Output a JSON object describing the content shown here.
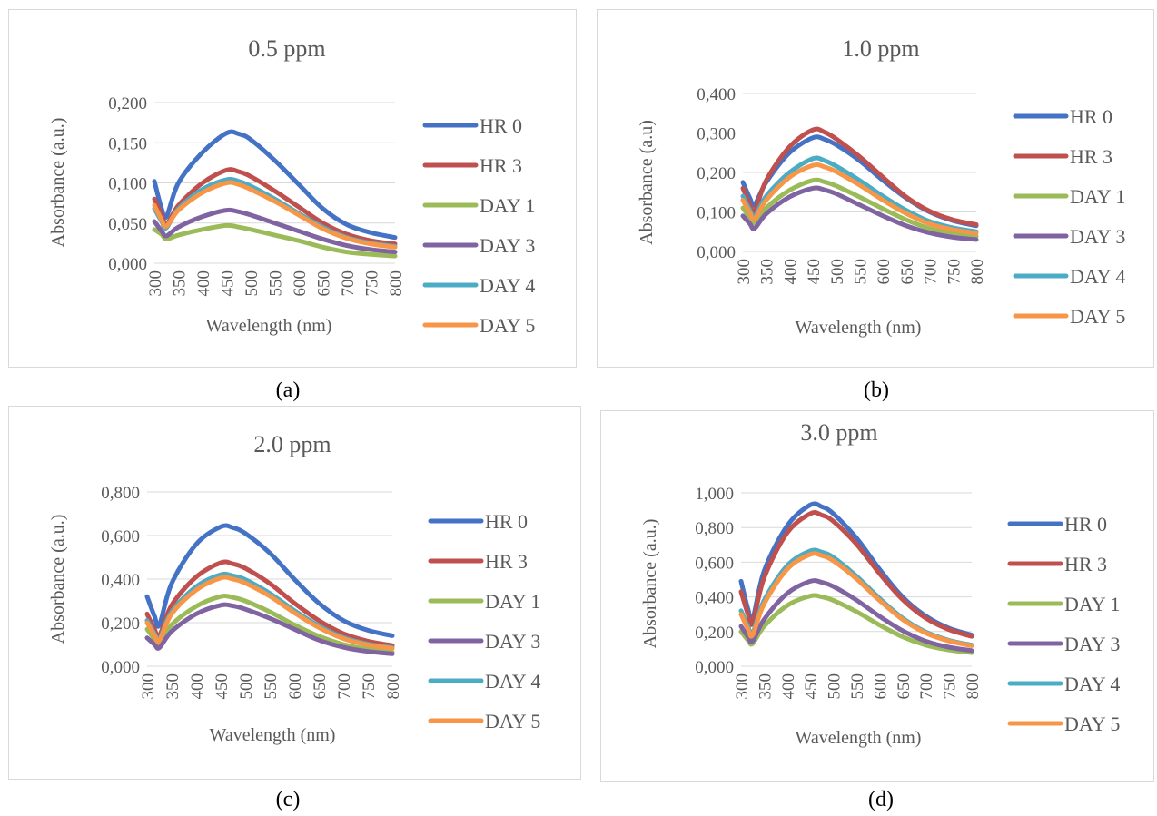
{
  "colors": {
    "HR 0": "#4472c4",
    "HR 3": "#c0504d",
    "DAY 1": "#9bbb59",
    "DAY 3": "#8064a2",
    "DAY 4": "#4bacc6",
    "DAY 5": "#f79646"
  },
  "chart_data": [
    {
      "type": "line",
      "caption": "(a)",
      "title": "0.5 ppm",
      "xlabel": "Wavelength (nm)",
      "ylabel": "Absorbance (a.u.)",
      "ylim": [
        0,
        0.2
      ],
      "yticks": [
        "0,000",
        "0,050",
        "0,100",
        "0,150",
        "0,200"
      ],
      "xticks": [
        "300",
        "350",
        "400",
        "450",
        "500",
        "550",
        "600",
        "650",
        "700",
        "750",
        "800"
      ],
      "grid": true,
      "legend": "right",
      "x": [
        300,
        315,
        325,
        350,
        400,
        450,
        475,
        500,
        550,
        600,
        650,
        700,
        750,
        800
      ],
      "series": [
        {
          "name": "HR 0",
          "values": [
            0.102,
            0.068,
            0.058,
            0.1,
            0.138,
            0.162,
            0.161,
            0.154,
            0.128,
            0.098,
            0.068,
            0.048,
            0.038,
            0.032
          ]
        },
        {
          "name": "HR 3",
          "values": [
            0.08,
            0.06,
            0.048,
            0.072,
            0.1,
            0.116,
            0.114,
            0.108,
            0.09,
            0.07,
            0.05,
            0.036,
            0.028,
            0.024
          ]
        },
        {
          "name": "DAY 1",
          "values": [
            0.042,
            0.036,
            0.03,
            0.035,
            0.042,
            0.047,
            0.045,
            0.042,
            0.035,
            0.028,
            0.02,
            0.014,
            0.011,
            0.009
          ]
        },
        {
          "name": "DAY 3",
          "values": [
            0.052,
            0.04,
            0.034,
            0.045,
            0.058,
            0.066,
            0.064,
            0.06,
            0.05,
            0.04,
            0.03,
            0.022,
            0.017,
            0.014
          ]
        },
        {
          "name": "DAY 4",
          "values": [
            0.068,
            0.052,
            0.044,
            0.068,
            0.092,
            0.104,
            0.102,
            0.096,
            0.08,
            0.062,
            0.045,
            0.032,
            0.025,
            0.021
          ]
        },
        {
          "name": "DAY 5",
          "values": [
            0.072,
            0.054,
            0.046,
            0.066,
            0.088,
            0.1,
            0.098,
            0.092,
            0.077,
            0.06,
            0.043,
            0.031,
            0.024,
            0.02
          ]
        }
      ]
    },
    {
      "type": "line",
      "caption": "(b)",
      "title": "1.0 ppm",
      "xlabel": "Wavelength (nm)",
      "ylabel": "Absorbance (a.u)",
      "ylim": [
        0,
        0.4
      ],
      "yticks": [
        "0,000",
        "0,100",
        "0,200",
        "0,300",
        "0,400"
      ],
      "xticks": [
        "300",
        "350",
        "400",
        "450",
        "500",
        "550",
        "600",
        "650",
        "700",
        "750",
        "800"
      ],
      "grid": true,
      "legend": "right",
      "x": [
        300,
        315,
        325,
        350,
        400,
        450,
        475,
        500,
        550,
        600,
        650,
        700,
        750,
        800
      ],
      "series": [
        {
          "name": "HR 0",
          "values": [
            0.175,
            0.135,
            0.118,
            0.175,
            0.25,
            0.288,
            0.284,
            0.27,
            0.23,
            0.18,
            0.135,
            0.1,
            0.078,
            0.065
          ]
        },
        {
          "name": "HR 3",
          "values": [
            0.16,
            0.12,
            0.1,
            0.18,
            0.265,
            0.308,
            0.302,
            0.285,
            0.24,
            0.188,
            0.138,
            0.102,
            0.08,
            0.068
          ]
        },
        {
          "name": "DAY 1",
          "values": [
            0.11,
            0.085,
            0.072,
            0.11,
            0.155,
            0.18,
            0.176,
            0.166,
            0.138,
            0.108,
            0.08,
            0.058,
            0.045,
            0.038
          ]
        },
        {
          "name": "DAY 3",
          "values": [
            0.09,
            0.07,
            0.058,
            0.095,
            0.138,
            0.16,
            0.156,
            0.146,
            0.118,
            0.09,
            0.065,
            0.047,
            0.036,
            0.03
          ]
        },
        {
          "name": "DAY 4",
          "values": [
            0.14,
            0.105,
            0.088,
            0.14,
            0.2,
            0.235,
            0.23,
            0.216,
            0.18,
            0.14,
            0.104,
            0.076,
            0.06,
            0.05
          ]
        },
        {
          "name": "DAY 5",
          "values": [
            0.13,
            0.098,
            0.082,
            0.13,
            0.188,
            0.218,
            0.214,
            0.202,
            0.168,
            0.13,
            0.096,
            0.07,
            0.055,
            0.046
          ]
        }
      ]
    },
    {
      "type": "line",
      "caption": "(c)",
      "title": "2.0 ppm",
      "xlabel": "Wavelength (nm)",
      "ylabel": "Absorbance (a.u.)",
      "ylim": [
        0,
        0.8
      ],
      "yticks": [
        "0,000",
        "0,200",
        "0,400",
        "0,600",
        "0,800"
      ],
      "xticks": [
        "300",
        "350",
        "400",
        "450",
        "500",
        "550",
        "600",
        "650",
        "700",
        "750",
        "800"
      ],
      "grid": true,
      "legend": "right",
      "x": [
        300,
        315,
        325,
        350,
        400,
        450,
        475,
        500,
        550,
        600,
        650,
        700,
        750,
        800
      ],
      "series": [
        {
          "name": "HR 0",
          "values": [
            0.32,
            0.23,
            0.19,
            0.38,
            0.56,
            0.64,
            0.636,
            0.61,
            0.52,
            0.4,
            0.29,
            0.21,
            0.165,
            0.14
          ]
        },
        {
          "name": "HR 3",
          "values": [
            0.24,
            0.17,
            0.14,
            0.28,
            0.41,
            0.475,
            0.47,
            0.45,
            0.38,
            0.29,
            0.21,
            0.15,
            0.115,
            0.095
          ]
        },
        {
          "name": "DAY 1",
          "values": [
            0.17,
            0.125,
            0.1,
            0.19,
            0.275,
            0.32,
            0.316,
            0.3,
            0.25,
            0.19,
            0.138,
            0.1,
            0.078,
            0.065
          ]
        },
        {
          "name": "DAY 3",
          "values": [
            0.13,
            0.1,
            0.085,
            0.16,
            0.24,
            0.28,
            0.277,
            0.262,
            0.22,
            0.17,
            0.12,
            0.087,
            0.068,
            0.057
          ]
        },
        {
          "name": "DAY 4",
          "values": [
            0.21,
            0.15,
            0.125,
            0.25,
            0.365,
            0.42,
            0.415,
            0.398,
            0.335,
            0.256,
            0.185,
            0.132,
            0.102,
            0.085
          ]
        },
        {
          "name": "DAY 5",
          "values": [
            0.2,
            0.142,
            0.118,
            0.24,
            0.35,
            0.405,
            0.4,
            0.382,
            0.322,
            0.246,
            0.178,
            0.127,
            0.098,
            0.082
          ]
        }
      ]
    },
    {
      "type": "line",
      "caption": "(d)",
      "title": "3.0 ppm",
      "xlabel": "Wavelength (nm)",
      "ylabel": "Absorbance (a.u.)",
      "ylim": [
        0,
        1.0
      ],
      "yticks": [
        "0,000",
        "0,200",
        "0,400",
        "0,600",
        "0,800",
        "1,000"
      ],
      "xticks": [
        "300",
        "350",
        "400",
        "450",
        "500",
        "550",
        "600",
        "650",
        "700",
        "750",
        "800"
      ],
      "grid": true,
      "legend": "right",
      "x": [
        300,
        315,
        325,
        350,
        400,
        450,
        475,
        500,
        550,
        600,
        650,
        700,
        750,
        800
      ],
      "series": [
        {
          "name": "HR 0",
          "values": [
            0.49,
            0.33,
            0.27,
            0.55,
            0.81,
            0.93,
            0.92,
            0.88,
            0.74,
            0.56,
            0.4,
            0.29,
            0.22,
            0.18
          ]
        },
        {
          "name": "HR 3",
          "values": [
            0.43,
            0.3,
            0.25,
            0.51,
            0.77,
            0.88,
            0.872,
            0.836,
            0.705,
            0.535,
            0.385,
            0.278,
            0.212,
            0.172
          ]
        },
        {
          "name": "DAY 1",
          "values": [
            0.2,
            0.15,
            0.13,
            0.23,
            0.35,
            0.405,
            0.4,
            0.38,
            0.315,
            0.238,
            0.17,
            0.122,
            0.094,
            0.078
          ]
        },
        {
          "name": "DAY 3",
          "values": [
            0.23,
            0.17,
            0.145,
            0.27,
            0.42,
            0.49,
            0.484,
            0.46,
            0.382,
            0.288,
            0.205,
            0.145,
            0.11,
            0.09
          ]
        },
        {
          "name": "DAY 4",
          "values": [
            0.32,
            0.23,
            0.19,
            0.38,
            0.58,
            0.665,
            0.658,
            0.628,
            0.52,
            0.392,
            0.278,
            0.198,
            0.15,
            0.122
          ]
        },
        {
          "name": "DAY 5",
          "values": [
            0.3,
            0.215,
            0.18,
            0.36,
            0.56,
            0.645,
            0.638,
            0.608,
            0.505,
            0.38,
            0.27,
            0.192,
            0.146,
            0.118
          ]
        }
      ]
    }
  ]
}
